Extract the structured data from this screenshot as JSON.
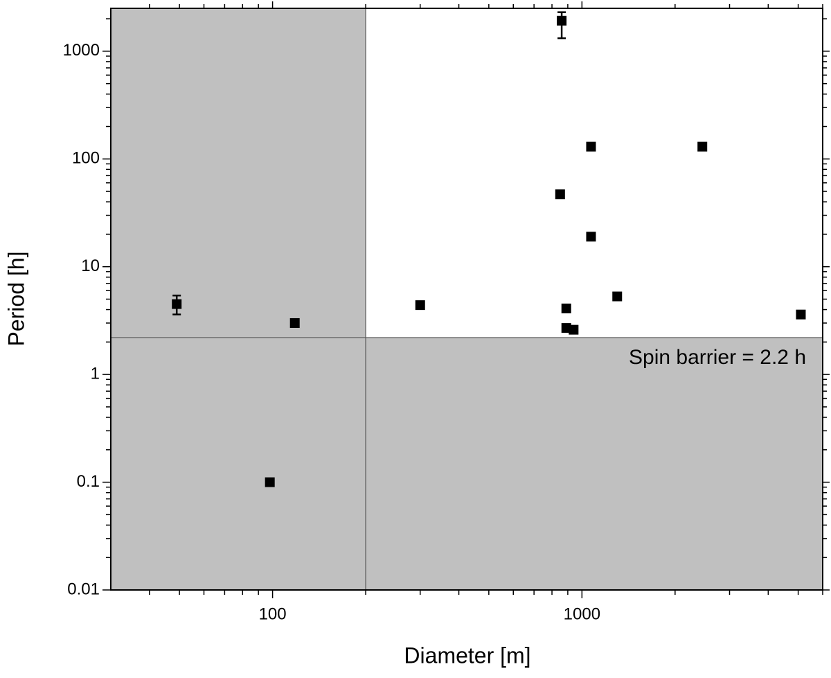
{
  "chart_data": {
    "type": "scatter",
    "x_label": "Diameter [m]",
    "y_label": "Period [h]",
    "x_scale": "log",
    "y_scale": "log",
    "xlim": [
      30,
      6000
    ],
    "ylim": [
      0.01,
      2500
    ],
    "xticks": [
      100,
      1000
    ],
    "xminor_ticks": [
      40,
      50,
      60,
      70,
      80,
      90,
      200,
      300,
      400,
      500,
      600,
      700,
      800,
      900,
      2000,
      3000,
      4000,
      5000,
      6000
    ],
    "yticks": [
      0.01,
      0.1,
      1,
      10,
      100,
      1000
    ],
    "yminor_ticks": [
      0.02,
      0.03,
      0.04,
      0.05,
      0.06,
      0.07,
      0.08,
      0.09,
      0.2,
      0.3,
      0.4,
      0.5,
      0.6,
      0.7,
      0.8,
      0.9,
      2,
      3,
      4,
      5,
      6,
      7,
      8,
      9,
      20,
      30,
      40,
      50,
      60,
      70,
      80,
      90,
      200,
      300,
      400,
      500,
      600,
      700,
      800,
      900,
      2000
    ],
    "shade_left_of_x": 200,
    "shade_below_y": 2.2,
    "shade_color": "#c0c0c0",
    "annotation": "Spin barrier = 2.2 h",
    "color": "#000000",
    "x": [
      49,
      118,
      98,
      300,
      860,
      850,
      1070,
      1070,
      890,
      890,
      940,
      1300,
      2450,
      5100
    ],
    "values": [
      4.5,
      3.0,
      0.1,
      4.4,
      1920,
      47,
      130,
      19,
      4.1,
      2.7,
      2.6,
      5.3,
      130,
      3.6
    ],
    "yerr_minus": [
      0.9,
      null,
      null,
      null,
      600,
      null,
      null,
      null,
      null,
      null,
      null,
      null,
      null,
      null
    ],
    "yerr_plus": [
      0.9,
      null,
      null,
      null,
      380,
      null,
      null,
      null,
      null,
      null,
      null,
      null,
      null,
      null
    ]
  }
}
